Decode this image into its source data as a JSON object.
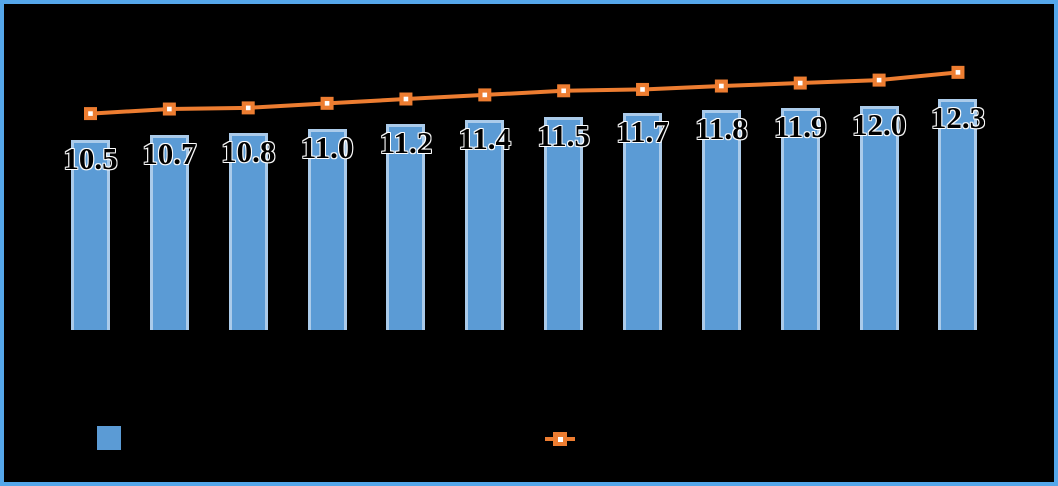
{
  "colors": {
    "background": "#000000",
    "frame_border": "#55A7EA",
    "bar_fill": "#5B9BD5",
    "bar_border": "#ABCBEA",
    "line": "#ED7D31",
    "marker_fill": "#ED7D31",
    "marker_center": "#FFFFFF",
    "data_label_text": "#000000",
    "data_label_halo": "#FFFFFF"
  },
  "chart_data": {
    "type": "bar",
    "overlay_type": "line",
    "title": "",
    "xlabel": "",
    "ylabel": "",
    "categories": [
      "",
      "",
      "",
      "",
      "",
      "",
      "",
      "",
      "",
      "",
      "",
      ""
    ],
    "category_labels_visible": false,
    "value_axis_visible": false,
    "gridlines": false,
    "series": [
      {
        "name": "bar-series",
        "type": "bar",
        "values": [
          10.5,
          10.7,
          10.8,
          11.0,
          11.2,
          11.4,
          11.5,
          11.7,
          11.8,
          11.9,
          12.0,
          12.3
        ],
        "data_labels": [
          "10.5",
          "10.7",
          "10.8",
          "11.0",
          "11.2",
          "11.4",
          "11.5",
          "11.7",
          "11.8",
          "11.9",
          "12.0",
          "12.3"
        ],
        "data_labels_position": "inside-end"
      },
      {
        "name": "line-series",
        "type": "line",
        "marker": "square-with-white-center",
        "labels_visible": false,
        "values_estimated": [
          11.66,
          11.86,
          11.91,
          12.11,
          12.3,
          12.48,
          12.66,
          12.72,
          12.87,
          13.0,
          13.13,
          13.47
        ]
      }
    ],
    "legend": {
      "position": "bottom",
      "labels_visible": false,
      "items": [
        {
          "swatch": "blue-square",
          "series": "bar-series"
        },
        {
          "swatch": "orange-line-with-square-marker",
          "series": "line-series"
        }
      ]
    }
  }
}
